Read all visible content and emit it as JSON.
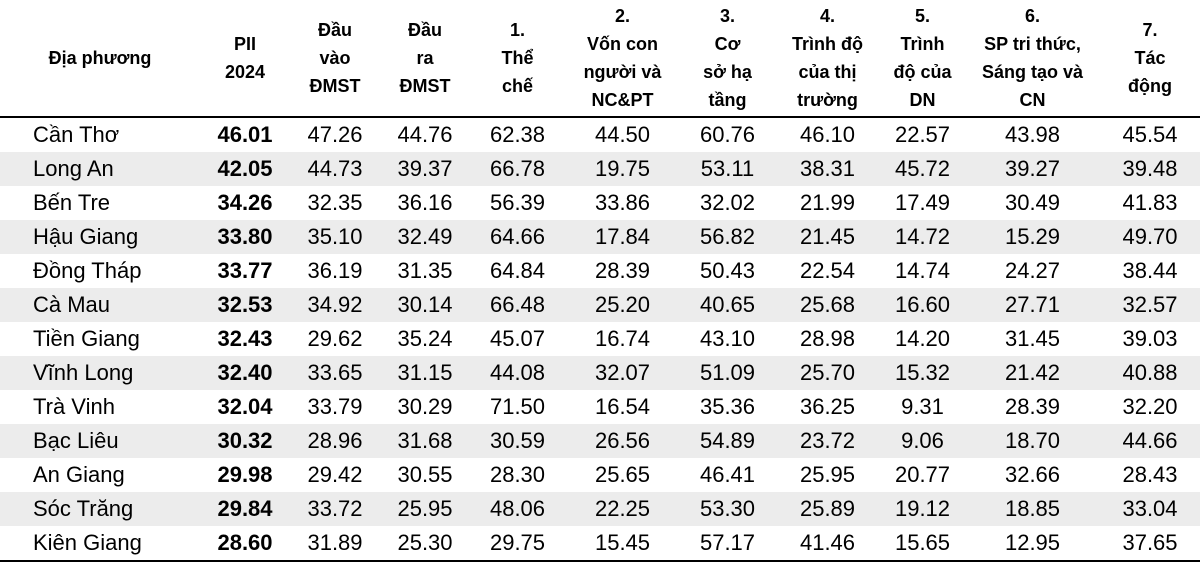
{
  "table": {
    "headers": [
      [
        "Địa phương"
      ],
      [
        "PII",
        "2024"
      ],
      [
        "Đầu",
        "vào",
        "ĐMST"
      ],
      [
        "Đầu",
        "ra",
        "ĐMST"
      ],
      [
        "1.",
        "Thể",
        "chế"
      ],
      [
        "2.",
        "Vốn con",
        "người và",
        "NC&PT"
      ],
      [
        "3.",
        "Cơ",
        "sở hạ",
        "tầng"
      ],
      [
        "4.",
        "Trình độ",
        "của thị",
        "trường"
      ],
      [
        "5.",
        "Trình",
        "độ của",
        "DN"
      ],
      [
        "6.",
        "SP tri thức,",
        "Sáng tạo và",
        "CN"
      ],
      [
        "7.",
        "Tác",
        "động"
      ]
    ],
    "rows": [
      [
        "Cần Thơ",
        "46.01",
        "47.26",
        "44.76",
        "62.38",
        "44.50",
        "60.76",
        "46.10",
        "22.57",
        "43.98",
        "45.54"
      ],
      [
        "Long An",
        "42.05",
        "44.73",
        "39.37",
        "66.78",
        "19.75",
        "53.11",
        "38.31",
        "45.72",
        "39.27",
        "39.48"
      ],
      [
        "Bến Tre",
        "34.26",
        "32.35",
        "36.16",
        "56.39",
        "33.86",
        "32.02",
        "21.99",
        "17.49",
        "30.49",
        "41.83"
      ],
      [
        "Hậu Giang",
        "33.80",
        "35.10",
        "32.49",
        "64.66",
        "17.84",
        "56.82",
        "21.45",
        "14.72",
        "15.29",
        "49.70"
      ],
      [
        "Đồng Tháp",
        "33.77",
        "36.19",
        "31.35",
        "64.84",
        "28.39",
        "50.43",
        "22.54",
        "14.74",
        "24.27",
        "38.44"
      ],
      [
        "Cà Mau",
        "32.53",
        "34.92",
        "30.14",
        "66.48",
        "25.20",
        "40.65",
        "25.68",
        "16.60",
        "27.71",
        "32.57"
      ],
      [
        "Tiền Giang",
        "32.43",
        "29.62",
        "35.24",
        "45.07",
        "16.74",
        "43.10",
        "28.98",
        "14.20",
        "31.45",
        "39.03"
      ],
      [
        "Vĩnh Long",
        "32.40",
        "33.65",
        "31.15",
        "44.08",
        "32.07",
        "51.09",
        "25.70",
        "15.32",
        "21.42",
        "40.88"
      ],
      [
        "Trà Vinh",
        "32.04",
        "33.79",
        "30.29",
        "71.50",
        "16.54",
        "35.36",
        "36.25",
        "9.31",
        "28.39",
        "32.20"
      ],
      [
        "Bạc Liêu",
        "30.32",
        "28.96",
        "31.68",
        "30.59",
        "26.56",
        "54.89",
        "23.72",
        "9.06",
        "18.70",
        "44.66"
      ],
      [
        "An Giang",
        "29.98",
        "29.42",
        "30.55",
        "28.30",
        "25.65",
        "46.41",
        "25.95",
        "20.77",
        "32.66",
        "28.43"
      ],
      [
        "Sóc Trăng",
        "29.84",
        "33.72",
        "25.95",
        "48.06",
        "22.25",
        "53.30",
        "25.89",
        "19.12",
        "18.85",
        "33.04"
      ],
      [
        "Kiên Giang",
        "28.60",
        "31.89",
        "25.30",
        "29.75",
        "15.45",
        "57.17",
        "41.46",
        "15.65",
        "12.95",
        "37.65"
      ]
    ]
  }
}
